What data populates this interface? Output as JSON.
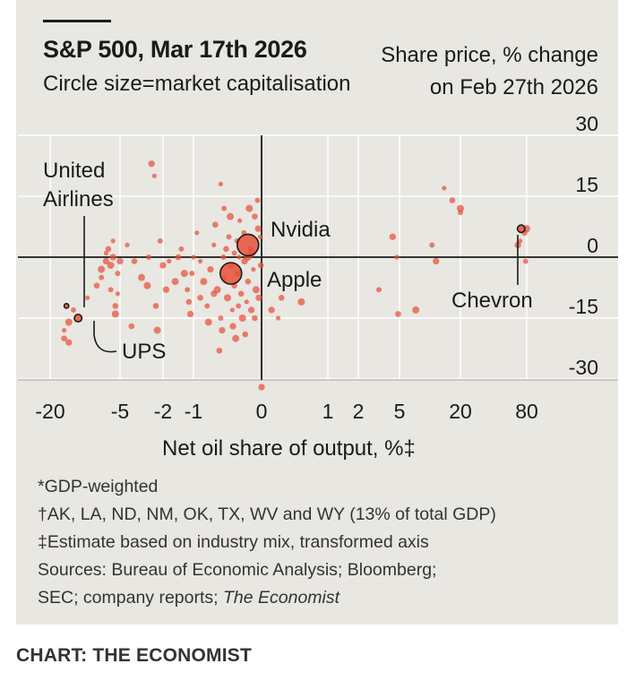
{
  "header": {
    "title": "S&P 500, Mar 17th 2026",
    "subtitle": "Circle size=market capitalisation",
    "ytitle_line1": "Share price, % change",
    "ytitle_line2": "on Feb 27th 2026"
  },
  "chart_data": {
    "type": "scatter",
    "title": "S&P 500, Mar 17th 2026",
    "xlabel": "Net oil share of output, %‡",
    "ylabel": "Share price, % change on Feb 27th 2026",
    "xticks": [
      {
        "label": "-20",
        "value": -20
      },
      {
        "label": "-5",
        "value": -5
      },
      {
        "label": "-2",
        "value": -2
      },
      {
        "label": "-1",
        "value": -1
      },
      {
        "label": "0",
        "value": 0
      },
      {
        "label": "1",
        "value": 1
      },
      {
        "label": "2",
        "value": 2
      },
      {
        "label": "5",
        "value": 5
      },
      {
        "label": "20",
        "value": 20
      },
      {
        "label": "80",
        "value": 80
      }
    ],
    "yticks": [
      {
        "label": "30",
        "value": 30
      },
      {
        "label": "15",
        "value": 15
      },
      {
        "label": "0",
        "value": 0
      },
      {
        "label": "-15",
        "value": -15
      },
      {
        "label": "-30",
        "value": -30
      }
    ],
    "ylim": [
      -30,
      30
    ],
    "point_color": "#e8503a",
    "points": [
      {
        "x": -17,
        "y": -18
      },
      {
        "x": -17,
        "y": -20
      },
      {
        "x": -16,
        "y": -16
      },
      {
        "x": -15,
        "y": -13
      },
      {
        "x": -16,
        "y": -21
      },
      {
        "x": -12,
        "y": -10
      },
      {
        "x": -10,
        "y": -7
      },
      {
        "x": -9,
        "y": -3
      },
      {
        "x": -9,
        "y": -5
      },
      {
        "x": -8,
        "y": -1
      },
      {
        "x": -8,
        "y": 1
      },
      {
        "x": -7.5,
        "y": 2
      },
      {
        "x": -7,
        "y": -2
      },
      {
        "x": -7,
        "y": -8
      },
      {
        "x": -6.5,
        "y": 0
      },
      {
        "x": -6.5,
        "y": 4
      },
      {
        "x": -6,
        "y": -12
      },
      {
        "x": -6,
        "y": -14
      },
      {
        "x": -5.5,
        "y": -4
      },
      {
        "x": -5,
        "y": -1
      },
      {
        "x": -4.5,
        "y": 3
      },
      {
        "x": -4,
        "y": -1
      },
      {
        "x": -3.5,
        "y": -5
      },
      {
        "x": -3,
        "y": 0
      },
      {
        "x": -2.8,
        "y": 23
      },
      {
        "x": -2.6,
        "y": 20
      },
      {
        "x": -2.5,
        "y": -12
      },
      {
        "x": -2.4,
        "y": -18
      },
      {
        "x": -2.2,
        "y": 4
      },
      {
        "x": -2.0,
        "y": -2
      },
      {
        "x": -1.8,
        "y": -1
      },
      {
        "x": -1.5,
        "y": 0
      },
      {
        "x": -1.3,
        "y": -4
      },
      {
        "x": -1.2,
        "y": -8
      },
      {
        "x": -1.1,
        "y": -14
      },
      {
        "x": -1.0,
        "y": 0
      },
      {
        "x": -0.9,
        "y": -10
      },
      {
        "x": -0.85,
        "y": -6
      },
      {
        "x": -0.8,
        "y": -12
      },
      {
        "x": -0.75,
        "y": -3
      },
      {
        "x": -0.7,
        "y": 3
      },
      {
        "x": -0.68,
        "y": 8
      },
      {
        "x": -0.65,
        "y": -8
      },
      {
        "x": -0.6,
        "y": -15
      },
      {
        "x": -0.58,
        "y": -18
      },
      {
        "x": -0.55,
        "y": -5
      },
      {
        "x": -0.52,
        "y": 2
      },
      {
        "x": -0.5,
        "y": -10
      },
      {
        "x": -0.48,
        "y": 5
      },
      {
        "x": -0.45,
        "y": -2
      },
      {
        "x": -0.43,
        "y": -13
      },
      {
        "x": -0.4,
        "y": -7
      },
      {
        "x": -0.38,
        "y": -20
      },
      {
        "x": -0.36,
        "y": 4
      },
      {
        "x": -0.35,
        "y": -4
      },
      {
        "x": -0.33,
        "y": 0
      },
      {
        "x": -0.3,
        "y": -9
      },
      {
        "x": -0.28,
        "y": -15
      },
      {
        "x": -0.26,
        "y": 6
      },
      {
        "x": -0.25,
        "y": -1
      },
      {
        "x": -0.22,
        "y": -11
      },
      {
        "x": -0.2,
        "y": -6
      },
      {
        "x": -0.18,
        "y": 12
      },
      {
        "x": -0.16,
        "y": 2
      },
      {
        "x": -0.15,
        "y": -13
      },
      {
        "x": -0.12,
        "y": -3
      },
      {
        "x": -0.1,
        "y": 10
      },
      {
        "x": -0.08,
        "y": -8
      },
      {
        "x": -0.06,
        "y": 14
      },
      {
        "x": -0.04,
        "y": -10
      },
      {
        "x": -0.02,
        "y": 5
      },
      {
        "x": -0.01,
        "y": -2
      },
      {
        "x": -1.6,
        "y": -6
      },
      {
        "x": -1.4,
        "y": 2
      },
      {
        "x": -1.9,
        "y": -8
      },
      {
        "x": -0.95,
        "y": 6
      },
      {
        "x": -0.62,
        "y": -23
      },
      {
        "x": -0.78,
        "y": -16
      },
      {
        "x": -1.05,
        "y": -4
      },
      {
        "x": -0.42,
        "y": -17
      },
      {
        "x": -0.32,
        "y": 9
      },
      {
        "x": -0.24,
        "y": -19
      },
      {
        "x": -0.14,
        "y": 1
      },
      {
        "x": -0.56,
        "y": 0
      },
      {
        "x": -0.7,
        "y": -9
      },
      {
        "x": -0.9,
        "y": -1
      },
      {
        "x": -1.15,
        "y": -11
      },
      {
        "x": -0.46,
        "y": 10
      },
      {
        "x": -0.34,
        "y": -12
      },
      {
        "x": -0.05,
        "y": 7
      },
      {
        "x": -0.6,
        "y": 18
      },
      {
        "x": -0.1,
        "y": -15
      },
      {
        "x": -0.2,
        "y": 0
      },
      {
        "x": -0.4,
        "y": 1
      },
      {
        "x": 0.15,
        "y": -13
      },
      {
        "x": 0.25,
        "y": -15
      },
      {
        "x": 0.3,
        "y": -10
      },
      {
        "x": 0.6,
        "y": -11
      },
      {
        "x": 3.5,
        "y": -8
      },
      {
        "x": 4.5,
        "y": 5
      },
      {
        "x": 4.8,
        "y": 0
      },
      {
        "x": 4.9,
        "y": -14
      },
      {
        "x": 9,
        "y": -13
      },
      {
        "x": 13,
        "y": 3
      },
      {
        "x": 14,
        "y": -1
      },
      {
        "x": 16,
        "y": 17
      },
      {
        "x": 18,
        "y": 14
      },
      {
        "x": 20,
        "y": 12
      },
      {
        "x": 20,
        "y": 11
      },
      {
        "x": 72,
        "y": 3
      },
      {
        "x": 74,
        "y": 4
      },
      {
        "x": 78,
        "y": 6
      },
      {
        "x": 80,
        "y": 7
      },
      {
        "x": 79,
        "y": -1
      },
      {
        "x": 0,
        "y": -32
      },
      {
        "x": -5.5,
        "y": -9
      },
      {
        "x": -4.2,
        "y": -17
      },
      {
        "x": -3.1,
        "y": -7
      },
      {
        "x": -0.55,
        "y": 12
      }
    ],
    "labelled_companies": [
      {
        "name": "Nvidia",
        "x": -0.2,
        "y": 3,
        "size": "large"
      },
      {
        "name": "Apple",
        "x": -0.45,
        "y": -4,
        "size": "large"
      },
      {
        "name": "Chevron",
        "x": 75,
        "y": 7,
        "size": "small"
      },
      {
        "name": "United Airlines",
        "x": -16.5,
        "y": -12,
        "size": "tiny"
      },
      {
        "name": "UPS",
        "x": -14,
        "y": -15,
        "size": "small"
      }
    ],
    "annotations": {
      "nvidia": "Nvidia",
      "apple": "Apple",
      "chevron": "Chevron",
      "united_line1": "United",
      "united_line2": "Airlines",
      "ups": "UPS"
    }
  },
  "footnotes": {
    "line1": "*GDP-weighted",
    "line2": "†AK, LA, ND, NM, OK, TX, WV and WY (13% of total GDP)",
    "line3": "‡Estimate based on industry mix, transformed axis",
    "line4": "Sources: Bureau of Economic Analysis; Bloomberg;",
    "line5_a": "SEC; company reports; ",
    "line5_b": "The Economist"
  },
  "credit": "CHART: THE ECONOMIST"
}
